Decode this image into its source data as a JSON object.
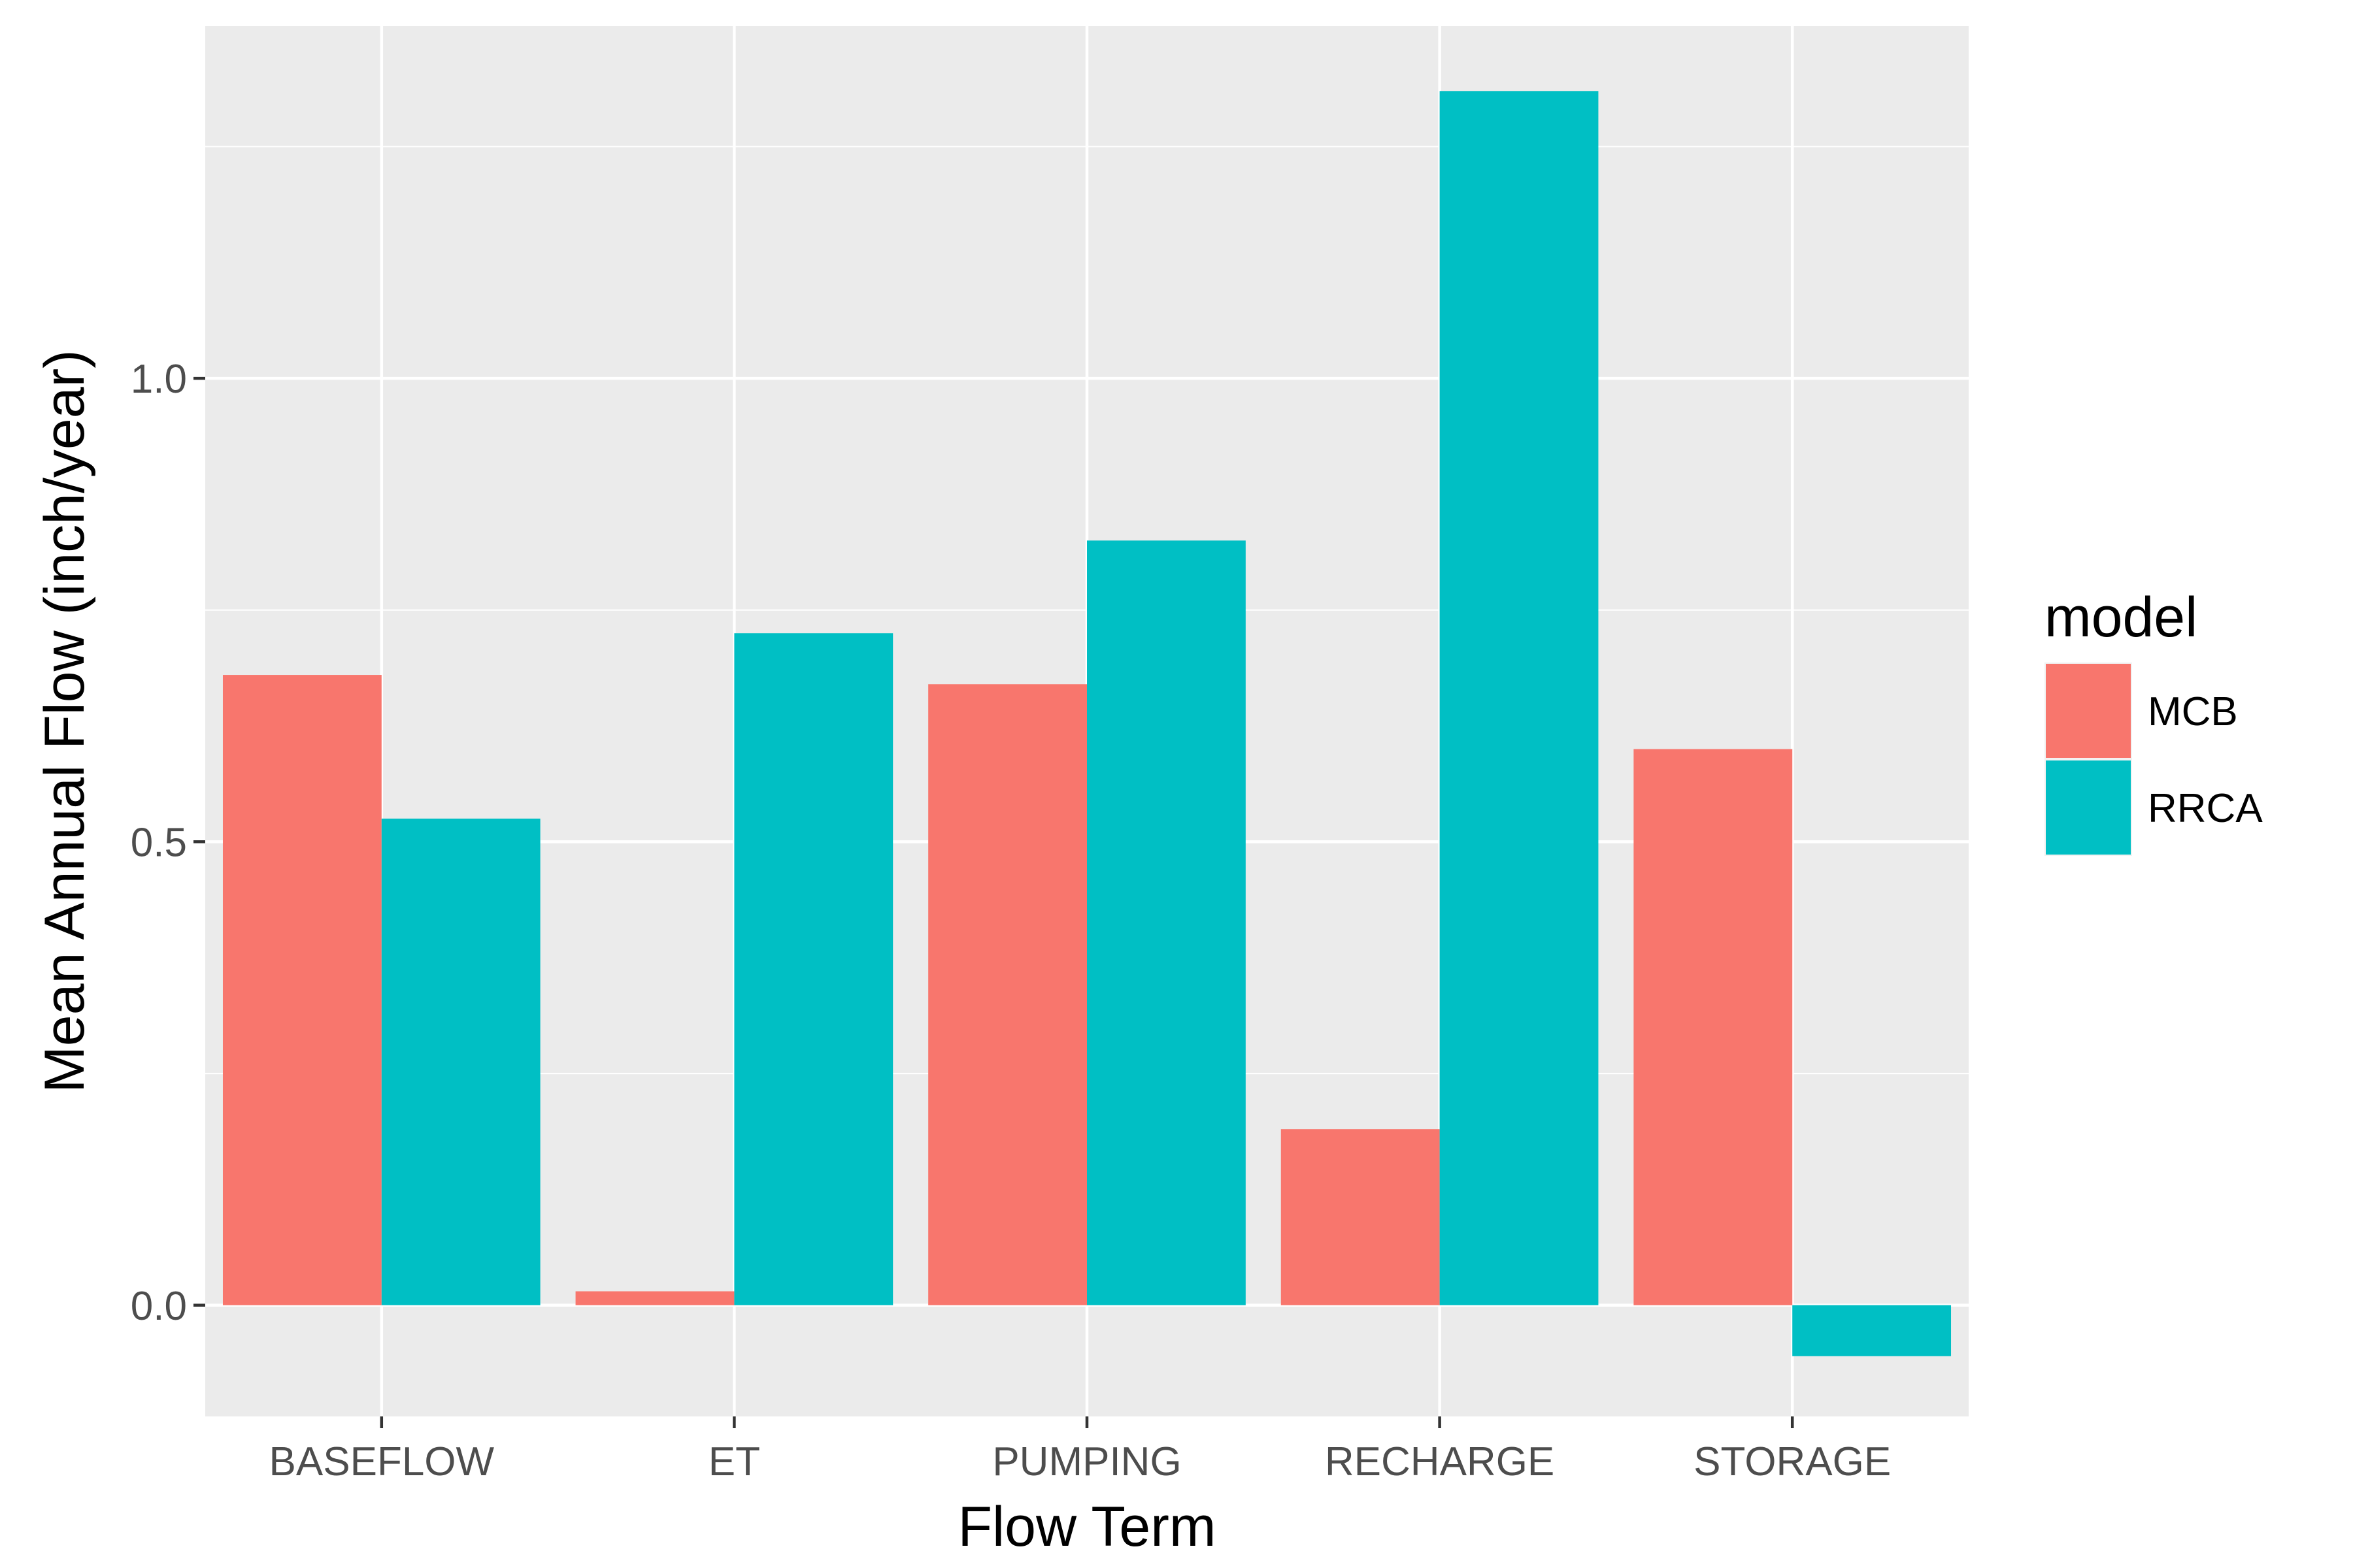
{
  "chart_data": {
    "type": "bar",
    "xlabel": "Flow Term",
    "ylabel": "Mean Annual Flow (inch/year)",
    "categories": [
      "BASEFLOW",
      "ET",
      "PUMPING",
      "RECHARGE",
      "STORAGE"
    ],
    "series": [
      {
        "name": "MCB",
        "color": "#F8766D",
        "values": [
          0.68,
          0.015,
          0.67,
          0.19,
          0.6
        ]
      },
      {
        "name": "RRCA",
        "color": "#00BFC4",
        "values": [
          0.525,
          0.725,
          0.825,
          1.31,
          -0.055
        ]
      }
    ],
    "ylim": [
      -0.12,
      1.38
    ],
    "yticks": [
      0.0,
      0.5,
      1.0
    ],
    "ytick_labels": [
      "0.0",
      "0.5",
      "1.0"
    ],
    "grid": true,
    "panel_background": "#EBEBEB",
    "legend": {
      "title": "model",
      "position": "right"
    }
  }
}
